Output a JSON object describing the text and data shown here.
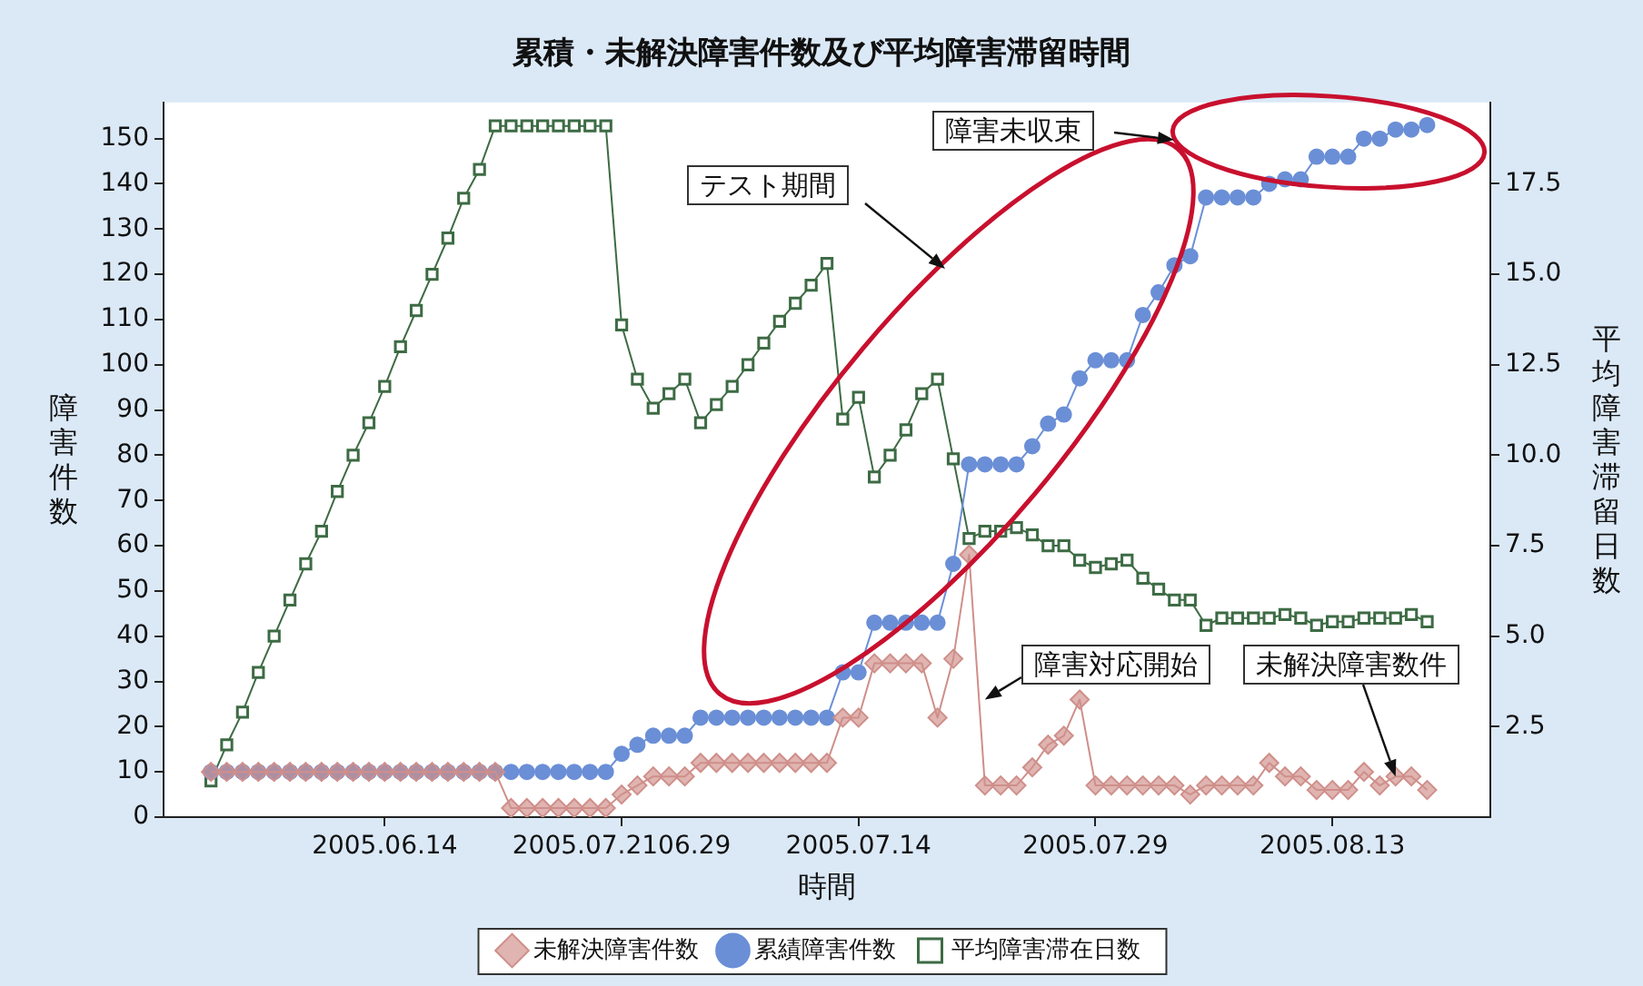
{
  "chart_data": {
    "type": "line",
    "title": "累積・未解決障害件数及び平均障害滞留時間",
    "xlabel": "時間",
    "ylabel": "障害件数",
    "y2label": "平均障害滞留日数",
    "x": [
      "2005-06-03",
      "2005-06-04",
      "2005-06-05",
      "2005-06-06",
      "2005-06-07",
      "2005-06-08",
      "2005-06-09",
      "2005-06-10",
      "2005-06-11",
      "2005-06-12",
      "2005-06-13",
      "2005-06-14",
      "2005-06-15",
      "2005-06-16",
      "2005-06-17",
      "2005-06-18",
      "2005-06-19",
      "2005-06-20",
      "2005-06-21",
      "2005-06-22",
      "2005-06-23",
      "2005-06-24",
      "2005-06-25",
      "2005-06-26",
      "2005-06-27",
      "2005-06-28",
      "2005-06-29",
      "2005-06-30",
      "2005-07-01",
      "2005-07-02",
      "2005-07-03",
      "2005-07-04",
      "2005-07-05",
      "2005-07-06",
      "2005-07-07",
      "2005-07-08",
      "2005-07-09",
      "2005-07-10",
      "2005-07-11",
      "2005-07-12",
      "2005-07-13",
      "2005-07-14",
      "2005-07-15",
      "2005-07-16",
      "2005-07-17",
      "2005-07-18",
      "2005-07-19",
      "2005-07-20",
      "2005-07-21",
      "2005-07-22",
      "2005-07-23",
      "2005-07-24",
      "2005-07-25",
      "2005-07-26",
      "2005-07-27",
      "2005-07-28",
      "2005-07-29",
      "2005-07-30",
      "2005-07-31",
      "2005-08-01",
      "2005-08-02",
      "2005-08-03",
      "2005-08-04",
      "2005-08-05",
      "2005-08-06",
      "2005-08-07",
      "2005-08-08",
      "2005-08-09",
      "2005-08-10",
      "2005-08-11",
      "2005-08-12",
      "2005-08-13",
      "2005-08-14",
      "2005-08-15",
      "2005-08-16",
      "2005-08-17",
      "2005-08-18",
      "2005-08-19"
    ],
    "xlim": [
      "2005-05-31",
      "2005-08-23"
    ],
    "xticks": [
      {
        "value": "2005-06-14",
        "label": "2005.06.14"
      },
      {
        "value": "2005-06-29",
        "label": "2005.07.2106.29"
      },
      {
        "value": "2005-07-14",
        "label": "2005.07.14"
      },
      {
        "value": "2005-07-29",
        "label": "2005.07.29"
      },
      {
        "value": "2005-08-13",
        "label": "2005.08.13"
      }
    ],
    "ylim": [
      0,
      158
    ],
    "yticks": [
      0,
      10,
      20,
      30,
      40,
      50,
      60,
      70,
      80,
      90,
      100,
      110,
      120,
      130,
      140,
      150
    ],
    "y2lim": [
      0,
      19.75
    ],
    "y2ticks": [
      2.5,
      {
        "value": 5,
        "label": "5.0"
      },
      7.5,
      {
        "value": 10,
        "label": "10.0"
      },
      12.5,
      {
        "value": 15,
        "label": "15.0"
      },
      17.5
    ],
    "series": [
      {
        "name": "累績障害件数",
        "color": "#6b8fd6",
        "marker": "circle",
        "values": [
          10,
          10,
          10,
          10,
          10,
          10,
          10,
          10,
          10,
          10,
          10,
          10,
          10,
          10,
          10,
          10,
          10,
          10,
          10,
          10,
          10,
          10,
          10,
          10,
          10,
          10,
          14,
          16,
          18,
          18,
          18,
          22,
          22,
          22,
          22,
          22,
          22,
          22,
          22,
          22,
          32,
          32,
          43,
          43,
          43,
          43,
          43,
          56,
          78,
          78,
          78,
          78,
          82,
          87,
          89,
          97,
          101,
          101,
          101,
          111,
          116,
          122,
          124,
          137,
          137,
          137,
          137,
          140,
          141,
          141,
          146,
          146,
          146,
          150,
          150,
          152,
          152,
          153
        ]
      },
      {
        "name": "未解決障害件数",
        "color": "#cf8f8a",
        "marker": "diamond",
        "values": [
          10,
          10,
          10,
          10,
          10,
          10,
          10,
          10,
          10,
          10,
          10,
          10,
          10,
          10,
          10,
          10,
          10,
          10,
          10,
          2,
          2,
          2,
          2,
          2,
          2,
          2,
          5,
          7,
          9,
          9,
          9,
          12,
          12,
          12,
          12,
          12,
          12,
          12,
          12,
          12,
          22,
          22,
          34,
          34,
          34,
          34,
          22,
          35,
          58,
          7,
          7,
          7,
          11,
          16,
          18,
          26,
          7,
          7,
          7,
          7,
          7,
          7,
          5,
          7,
          7,
          7,
          7,
          12,
          9,
          9,
          6,
          6,
          6,
          10,
          7,
          9,
          9,
          6
        ]
      },
      {
        "name": "平均障害滞在日数",
        "color": "#3d6b44",
        "marker": "square",
        "axis": "y2",
        "values": [
          1.0,
          2.0,
          2.9,
          4.0,
          5.0,
          6.0,
          7.0,
          7.9,
          9.0,
          10.0,
          10.9,
          11.9,
          13.0,
          14.0,
          15.0,
          16.0,
          17.1,
          17.9,
          19.1,
          19.1,
          19.1,
          19.1,
          19.1,
          19.1,
          19.1,
          19.1,
          13.6,
          12.1,
          11.3,
          11.7,
          12.1,
          10.9,
          11.4,
          11.9,
          12.5,
          13.1,
          13.7,
          14.2,
          14.7,
          15.3,
          11.0,
          11.6,
          9.4,
          10.0,
          10.7,
          11.7,
          12.1,
          9.9,
          7.7,
          7.9,
          7.9,
          8.0,
          7.8,
          7.5,
          7.5,
          7.1,
          6.9,
          7.0,
          7.1,
          6.6,
          6.3,
          6.0,
          6.0,
          5.3,
          5.5,
          5.5,
          5.5,
          5.5,
          5.6,
          5.5,
          5.3,
          5.4,
          5.4,
          5.5,
          5.5,
          5.5,
          5.6,
          5.4
        ]
      }
    ],
    "legend": "bottom",
    "grid": false,
    "annotations": [
      "テスト期間",
      "障害未収束",
      {
        "text": "障害対応開始",
        "x": "2005-07-22",
        "y": 26
      },
      {
        "text": "未解決障害数件",
        "x": "2005-08-17",
        "y": 9
      }
    ]
  }
}
